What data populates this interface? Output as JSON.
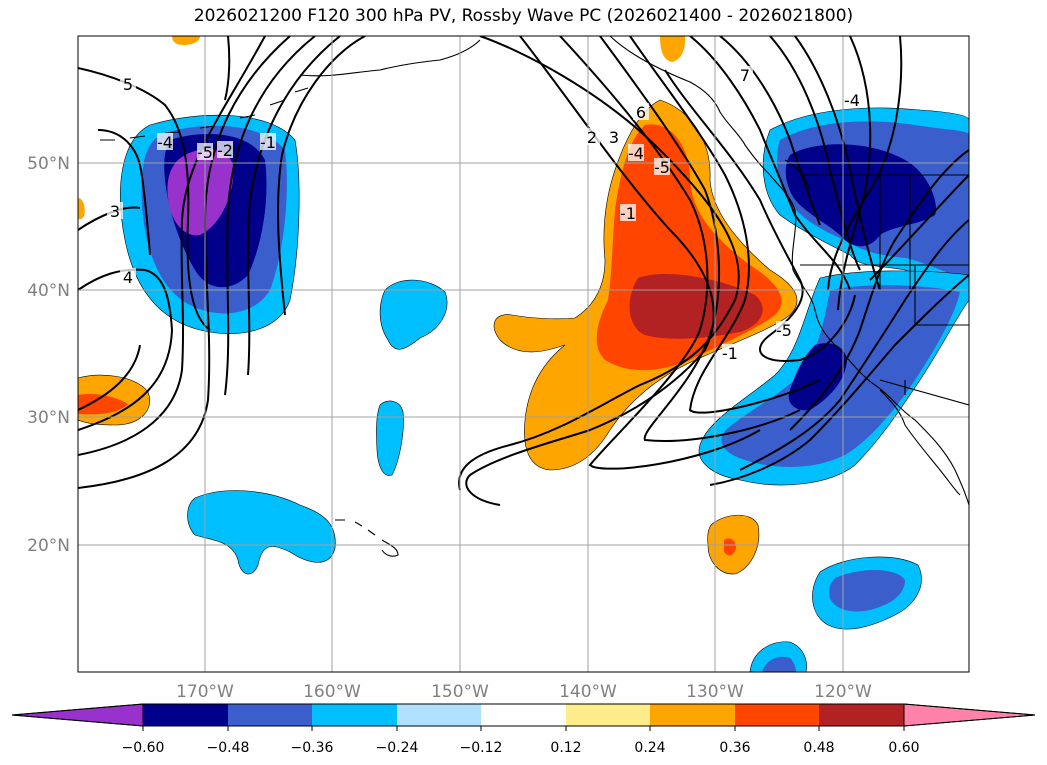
{
  "title": "2026021200 F120 300 hPa PV, Rossby Wave PC (2026021400 - 2026021800)",
  "map": {
    "lat_labels": [
      "50°N",
      "40°N",
      "30°N",
      "20°N"
    ],
    "lon_labels": [
      "170°W",
      "160°W",
      "150°W",
      "140°W",
      "130°W",
      "120°W"
    ],
    "grid": true,
    "contour_labels": [
      "5",
      "3",
      "4",
      "-5",
      "-2",
      "-1",
      "-4",
      "-1",
      "2",
      "3",
      "6",
      "7",
      "-4",
      "-5",
      "-1",
      "-5",
      "-4"
    ]
  },
  "colorbar": {
    "tick_labels": [
      "−0.60",
      "−0.48",
      "−0.36",
      "−0.24",
      "−0.12",
      "0.12",
      "0.24",
      "0.36",
      "0.48",
      "0.60"
    ],
    "colors": [
      "#9932CC",
      "#00008B",
      "#3A5FCD",
      "#00BFFF",
      "#B0E2FF",
      "#FFFFFF",
      "#FFEC8B",
      "#FFA500",
      "#FF4500",
      "#B22222",
      "#FF82AB"
    ]
  }
}
